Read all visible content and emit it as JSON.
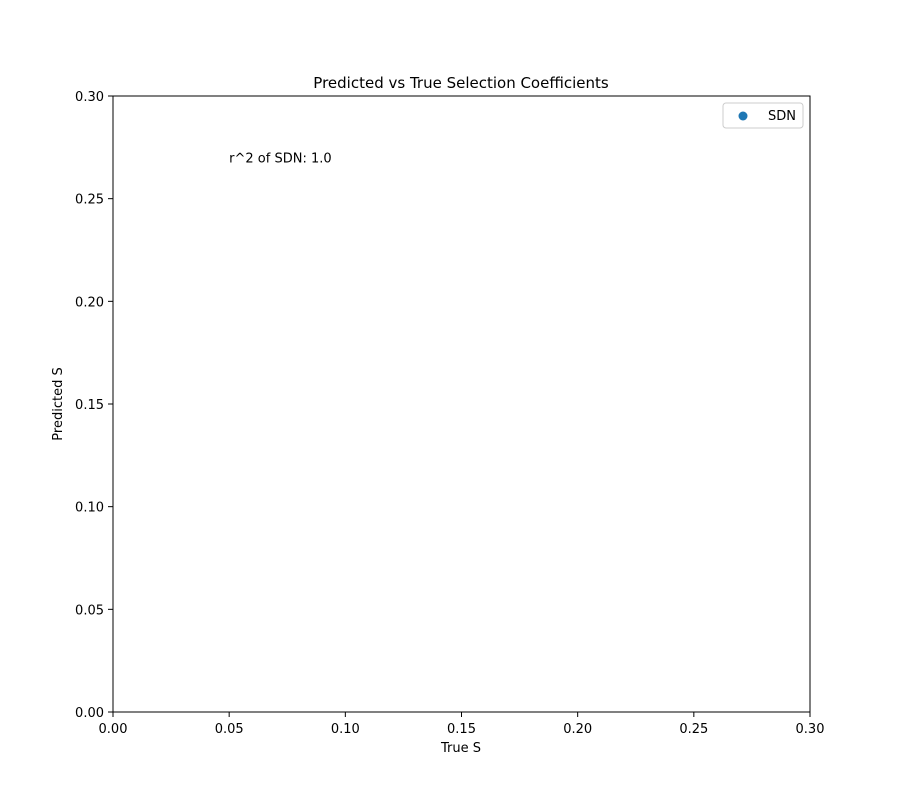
{
  "chart_data": {
    "type": "scatter",
    "title": "Predicted vs True Selection Coefficients",
    "xlabel": "True S",
    "ylabel": "Predicted S",
    "xlim": [
      0,
      0.3
    ],
    "ylim": [
      0,
      0.3
    ],
    "xticks": [
      "0.00",
      "0.05",
      "0.10",
      "0.15",
      "0.20",
      "0.25",
      "0.30"
    ],
    "yticks": [
      "0.00",
      "0.05",
      "0.10",
      "0.15",
      "0.20",
      "0.25",
      "0.30"
    ],
    "series": [
      {
        "name": "SDN",
        "color": "#1f77b4",
        "x": [],
        "y": []
      }
    ],
    "annotations": [
      {
        "text": "r^2 of SDN: 1.0",
        "x": 0.05,
        "y": 0.27
      }
    ],
    "legend": {
      "position": "top-right"
    },
    "grid": false
  }
}
